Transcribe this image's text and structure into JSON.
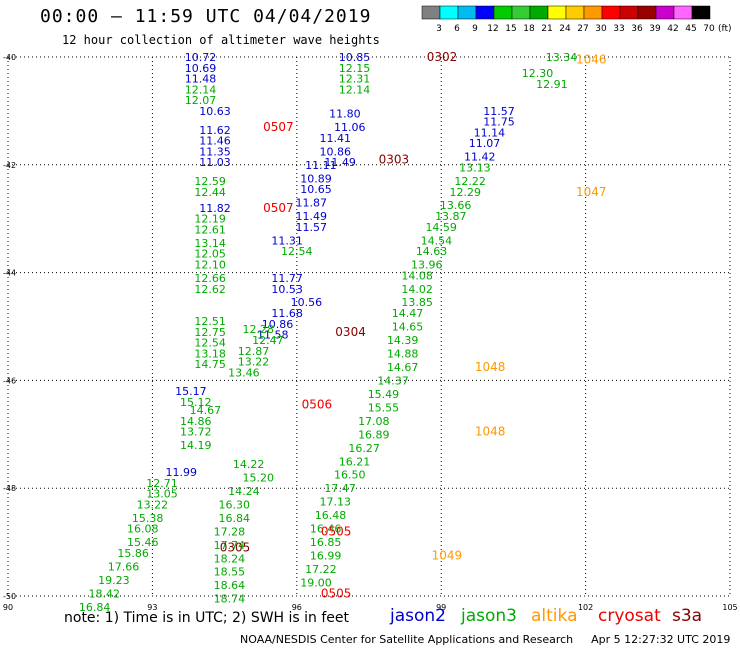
{
  "header": {
    "title": "00:00 – 11:59 UTC 04/04/2019",
    "subtitle": "12 hour collection of altimeter wave heights"
  },
  "colorbar": {
    "labels": [
      "3",
      "6",
      "9",
      "12",
      "15",
      "18",
      "21",
      "24",
      "27",
      "30",
      "33",
      "36",
      "39",
      "42",
      "45",
      "70"
    ],
    "colors": [
      "#808080",
      "#00ffff",
      "#00bbee",
      "#0000ff",
      "#00cc00",
      "#33cc33",
      "#00aa00",
      "#ffff00",
      "#ffcc00",
      "#ff9900",
      "#ff0000",
      "#cc0000",
      "#990000",
      "#cc00cc",
      "#ff66ff",
      "#000000"
    ],
    "unit": "(ft)"
  },
  "footer": {
    "note": "note:  1) Time is in UTC;  2) SWH is in feet",
    "credit": "NOAA/NESDIS Center for Satellite Applications and Research",
    "timestamp": "Apr  5 12:27:32 UTC 2019"
  },
  "satellites": [
    {
      "name": "jason2",
      "color": "#0000cc"
    },
    {
      "name": "jason3",
      "color": "#00aa00"
    },
    {
      "name": "altika",
      "color": "#ff9900"
    },
    {
      "name": "cryosat",
      "color": "#ee0000"
    },
    {
      "name": "s3a",
      "color": "#880000"
    }
  ],
  "chart_data": {
    "type": "scatter",
    "title": "00:00 – 11:59 UTC 04/04/2019",
    "xlim": [
      90,
      105
    ],
    "ylim": [
      -50,
      -40
    ],
    "x_ticks": [
      "90",
      "93",
      "96",
      "99",
      "102",
      "105"
    ],
    "y_ticks": [
      "-40",
      "-42",
      "-44",
      "-46",
      "-48",
      "-50"
    ],
    "grid": true,
    "legend_position": "bottom-right",
    "series": [
      {
        "name": "jason2",
        "color": "#0000cc",
        "points": [
          [
            94.0,
            -40.0,
            "10.72"
          ],
          [
            94.0,
            -40.2,
            "10.69"
          ],
          [
            94.0,
            -40.4,
            "11.48"
          ],
          [
            94.3,
            -41.0,
            "10.63"
          ],
          [
            94.3,
            -41.35,
            "11.62"
          ],
          [
            94.3,
            -41.55,
            "11.46"
          ],
          [
            94.3,
            -41.75,
            "11.35"
          ],
          [
            94.3,
            -41.95,
            "11.03"
          ],
          [
            94.3,
            -42.8,
            "11.82"
          ],
          [
            93.8,
            -46.2,
            "15.17"
          ],
          [
            93.6,
            -47.7,
            "11.99"
          ],
          [
            95.8,
            -44.1,
            "11.77"
          ],
          [
            95.8,
            -44.3,
            "10.53"
          ],
          [
            96.2,
            -44.55,
            "10.56"
          ],
          [
            95.8,
            -44.75,
            "11.68"
          ],
          [
            95.6,
            -44.95,
            "10.86"
          ],
          [
            95.5,
            -45.15,
            "11.58"
          ],
          [
            95.8,
            -43.4,
            "11.31"
          ],
          [
            96.3,
            -42.7,
            "11.87"
          ],
          [
            96.3,
            -42.95,
            "11.49"
          ],
          [
            96.3,
            -43.15,
            "11.57"
          ],
          [
            96.4,
            -42.25,
            "10.89"
          ],
          [
            96.4,
            -42.45,
            "10.65"
          ],
          [
            96.5,
            -42.0,
            "11.11"
          ],
          [
            96.8,
            -41.5,
            "11.41"
          ],
          [
            96.8,
            -41.75,
            "10.86"
          ],
          [
            96.9,
            -41.95,
            "11.49"
          ],
          [
            97.0,
            -41.05,
            "11.80"
          ],
          [
            97.1,
            -41.3,
            "11.06"
          ],
          [
            97.2,
            -40.0,
            "10.85"
          ],
          [
            100.2,
            -41.0,
            "11.57"
          ],
          [
            100.2,
            -41.2,
            "11.75"
          ],
          [
            100.0,
            -41.4,
            "11.14"
          ],
          [
            99.9,
            -41.6,
            "11.07"
          ],
          [
            99.8,
            -41.85,
            "11.42"
          ]
        ]
      },
      {
        "name": "jason3",
        "color": "#00aa00",
        "points": [
          [
            94.0,
            -40.6,
            "12.14"
          ],
          [
            94.0,
            -40.8,
            "12.07"
          ],
          [
            94.2,
            -42.3,
            "12.59"
          ],
          [
            94.2,
            -42.5,
            "12.44"
          ],
          [
            94.2,
            -43.0,
            "12.19"
          ],
          [
            94.2,
            -43.2,
            "12.61"
          ],
          [
            94.2,
            -43.45,
            "13.14"
          ],
          [
            94.2,
            -43.65,
            "12.05"
          ],
          [
            94.2,
            -43.85,
            "12.10"
          ],
          [
            94.2,
            -44.1,
            "12.66"
          ],
          [
            94.2,
            -44.3,
            "12.62"
          ],
          [
            94.2,
            -44.9,
            "12.51"
          ],
          [
            94.2,
            -45.1,
            "12.75"
          ],
          [
            94.2,
            -45.3,
            "12.54"
          ],
          [
            94.2,
            -45.5,
            "13.18"
          ],
          [
            94.2,
            -45.7,
            "14.75"
          ],
          [
            93.9,
            -46.4,
            "15.12"
          ],
          [
            94.1,
            -46.55,
            "14.67"
          ],
          [
            93.9,
            -46.75,
            "14.86"
          ],
          [
            93.9,
            -46.95,
            "13.72"
          ],
          [
            93.9,
            -47.2,
            "14.19"
          ],
          [
            93.2,
            -47.9,
            "12.71"
          ],
          [
            93.2,
            -48.1,
            "13.05"
          ],
          [
            93.0,
            -48.3,
            "13.22"
          ],
          [
            92.9,
            -48.55,
            "15.38"
          ],
          [
            92.8,
            -48.75,
            "16.08"
          ],
          [
            92.8,
            -49.0,
            "15.46"
          ],
          [
            92.6,
            -49.2,
            "15.86"
          ],
          [
            92.4,
            -49.45,
            "17.66"
          ],
          [
            92.2,
            -49.7,
            "19.23"
          ],
          [
            92.0,
            -49.95,
            "18.42"
          ],
          [
            91.8,
            -50.2,
            "16.84"
          ],
          [
            95.2,
            -45.05,
            "12.28"
          ],
          [
            95.4,
            -45.25,
            "12.47"
          ],
          [
            95.1,
            -45.45,
            "12.87"
          ],
          [
            95.1,
            -45.65,
            "13.22"
          ],
          [
            94.9,
            -45.85,
            "13.46"
          ],
          [
            95.0,
            -47.55,
            "14.22"
          ],
          [
            95.2,
            -47.8,
            "15.20"
          ],
          [
            94.9,
            -48.05,
            "14.24"
          ],
          [
            94.7,
            -48.3,
            "16.30"
          ],
          [
            94.7,
            -48.55,
            "16.84"
          ],
          [
            94.6,
            -48.8,
            "17.28"
          ],
          [
            94.6,
            -49.05,
            "17.74"
          ],
          [
            94.6,
            -49.3,
            "18.24"
          ],
          [
            94.6,
            -49.55,
            "18.55"
          ],
          [
            94.6,
            -49.8,
            "18.64"
          ],
          [
            94.6,
            -50.05,
            "18.74"
          ],
          [
            96.0,
            -43.6,
            "12.54"
          ],
          [
            97.2,
            -40.2,
            "12.15"
          ],
          [
            97.2,
            -40.4,
            "12.31"
          ],
          [
            97.2,
            -40.6,
            "12.14"
          ],
          [
            101.0,
            -40.3,
            "12.30"
          ],
          [
            101.3,
            -40.5,
            "12.91"
          ],
          [
            99.7,
            -42.05,
            "13.13"
          ],
          [
            99.6,
            -42.3,
            "12.22"
          ],
          [
            99.5,
            -42.5,
            "12.29"
          ],
          [
            99.3,
            -42.75,
            "13.66"
          ],
          [
            99.2,
            -42.95,
            "13.87"
          ],
          [
            99.0,
            -43.15,
            "14.59"
          ],
          [
            98.9,
            -43.4,
            "14.54"
          ],
          [
            98.8,
            -43.6,
            "14.63"
          ],
          [
            98.7,
            -43.85,
            "13.96"
          ],
          [
            98.5,
            -44.05,
            "14.08"
          ],
          [
            98.5,
            -44.3,
            "14.02"
          ],
          [
            98.5,
            -44.55,
            "13.85"
          ],
          [
            98.3,
            -44.75,
            "14.47"
          ],
          [
            98.3,
            -45.0,
            "14.65"
          ],
          [
            98.2,
            -45.25,
            "14.39"
          ],
          [
            98.2,
            -45.5,
            "14.88"
          ],
          [
            98.2,
            -45.75,
            "14.67"
          ],
          [
            98.0,
            -46.0,
            "14.37"
          ],
          [
            97.8,
            -46.25,
            "15.49"
          ],
          [
            97.8,
            -46.5,
            "15.55"
          ],
          [
            97.6,
            -46.75,
            "17.08"
          ],
          [
            97.6,
            -47.0,
            "16.89"
          ],
          [
            97.4,
            -47.25,
            "16.27"
          ],
          [
            97.2,
            -47.5,
            "16.21"
          ],
          [
            97.1,
            -47.75,
            "16.50"
          ],
          [
            96.9,
            -48.0,
            "17.47"
          ],
          [
            96.8,
            -48.25,
            "17.13"
          ],
          [
            96.7,
            -48.5,
            "16.48"
          ],
          [
            96.6,
            -48.75,
            "16.46"
          ],
          [
            96.6,
            -49.0,
            "16.85"
          ],
          [
            96.6,
            -49.25,
            "16.99"
          ],
          [
            96.5,
            -49.5,
            "17.22"
          ],
          [
            96.4,
            -49.75,
            "19.00"
          ],
          [
            101.5,
            -40.0,
            "13.34"
          ]
        ]
      },
      {
        "name": "labels",
        "points": [
          [
            98.7,
            -40.0,
            "0302",
            "#880000"
          ],
          [
            101.8,
            -40.05,
            "1046",
            "#ff9900"
          ],
          [
            95.3,
            -41.3,
            "0507",
            "#ee0000"
          ],
          [
            97.7,
            -41.9,
            "0303",
            "#880000"
          ],
          [
            101.8,
            -42.5,
            "1047",
            "#ff9900"
          ],
          [
            95.3,
            -42.8,
            "0507",
            "#ee0000"
          ],
          [
            96.8,
            -45.1,
            "0304",
            "#880000"
          ],
          [
            99.7,
            -45.75,
            "1048",
            "#ff9900"
          ],
          [
            96.1,
            -46.45,
            "0506",
            "#ee0000"
          ],
          [
            99.7,
            -46.95,
            "1048",
            "#ff9900"
          ],
          [
            96.5,
            -48.8,
            "0505",
            "#ee0000"
          ],
          [
            94.4,
            -49.1,
            "0305",
            "#880000"
          ],
          [
            98.8,
            -49.25,
            "1049",
            "#ff9900"
          ],
          [
            96.5,
            -49.95,
            "0505",
            "#ee0000"
          ]
        ]
      }
    ]
  }
}
